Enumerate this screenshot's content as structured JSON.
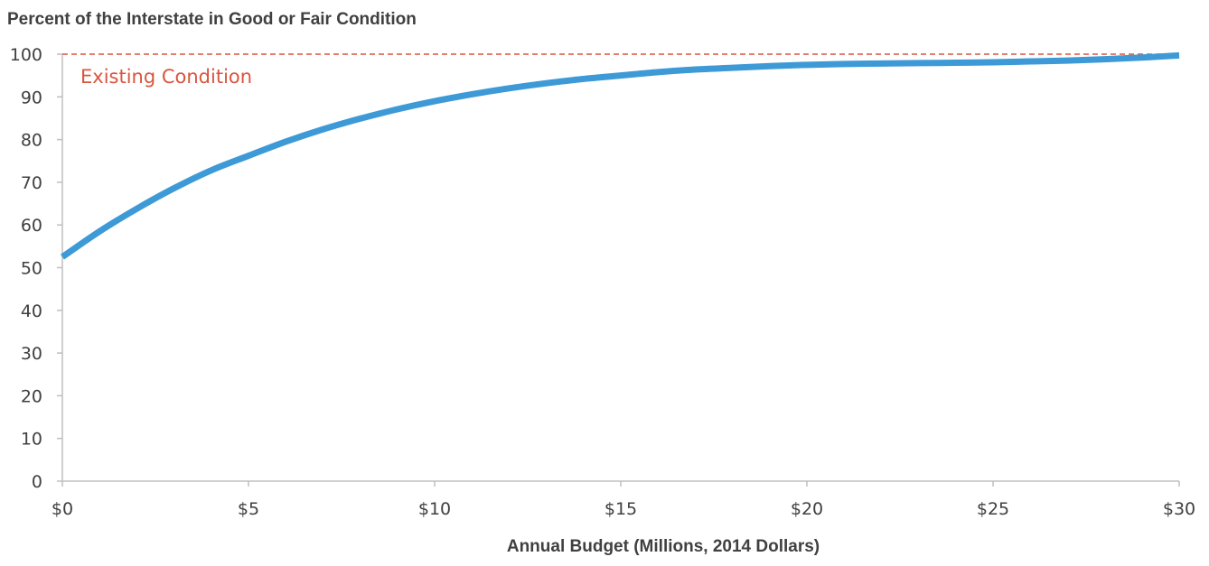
{
  "chart_data": {
    "type": "line",
    "title": "",
    "ylabel": "Percent of the Interstate in Good or Fair Condition",
    "xlabel": "Annual Budget (Millions, 2014 Dollars)",
    "xlim": [
      0,
      30
    ],
    "ylim": [
      0,
      100
    ],
    "x_ticks": [
      0,
      5,
      10,
      15,
      20,
      25,
      30
    ],
    "x_tick_labels": [
      "$0",
      "$5",
      "$10",
      "$15",
      "$20",
      "$25",
      "$30"
    ],
    "y_ticks": [
      0,
      10,
      20,
      30,
      40,
      50,
      60,
      70,
      80,
      90,
      100
    ],
    "y_tick_labels": [
      "0",
      "10",
      "20",
      "30",
      "40",
      "50",
      "60",
      "70",
      "80",
      "90",
      "100"
    ],
    "grid": false,
    "series": [
      {
        "color": "#3d9ad6",
        "x": [
          0,
          1,
          2,
          3,
          4,
          5,
          6,
          7,
          8,
          9,
          10,
          11,
          12,
          13,
          14,
          15,
          16,
          17,
          18,
          19,
          20,
          21,
          22,
          23,
          24,
          25,
          26,
          27,
          28,
          29,
          30
        ],
        "y": [
          52.5,
          58.5,
          63.8,
          68.6,
          72.8,
          76.2,
          79.5,
          82.4,
          84.9,
          87.1,
          89.0,
          90.6,
          92.0,
          93.2,
          94.2,
          95.0,
          95.8,
          96.4,
          96.8,
          97.2,
          97.5,
          97.7,
          97.8,
          97.9,
          98.0,
          98.1,
          98.3,
          98.5,
          98.8,
          99.2,
          99.7
        ]
      }
    ],
    "reference_line": {
      "y": 100,
      "label": "Existing Condition",
      "color": "#d9553f",
      "style": "dashed"
    },
    "axis_color": "#bfbfbf",
    "text_color": "#404040"
  }
}
